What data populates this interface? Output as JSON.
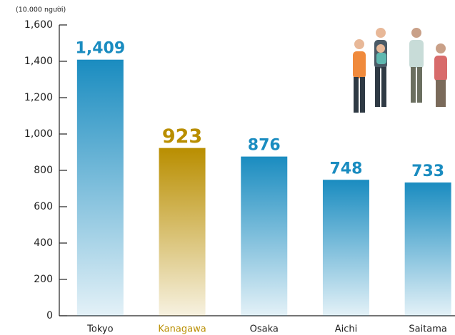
{
  "chart_data": {
    "type": "bar",
    "axis_label": "(10.000 người)",
    "categories": [
      "Tokyo",
      "Kanagawa",
      "Osaka",
      "Aichi",
      "Saitama"
    ],
    "values": [
      1409,
      923,
      876,
      748,
      733
    ],
    "value_labels": [
      "1,409",
      "923",
      "876",
      "748",
      "733"
    ],
    "colors": [
      "#1a8cc0",
      "#b98e00",
      "#1a8cc0",
      "#1a8cc0",
      "#1a8cc0"
    ],
    "ylim": [
      0,
      1600
    ],
    "yticks": [
      0,
      200,
      400,
      600,
      800,
      {
        "value": 1000,
        "label": "1,000"
      },
      {
        "value": 1200,
        "label": "1,200"
      },
      {
        "value": 1400,
        "label": "1,400"
      },
      {
        "value": 1600,
        "label": "1,600"
      }
    ],
    "grid": false
  }
}
